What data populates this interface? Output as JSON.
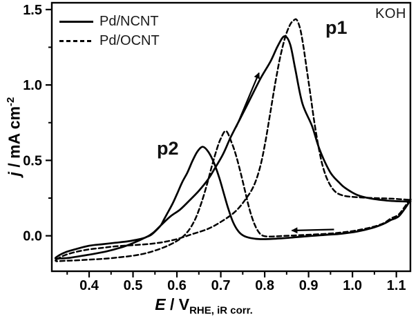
{
  "figure": {
    "background": "#ffffff",
    "ink": "#000000"
  },
  "legend": {
    "items": [
      {
        "label": "Pd/NCNT",
        "line_style": "solid"
      },
      {
        "label": "Pd/OCNT",
        "line_style": "dashed"
      }
    ]
  },
  "annotations": {
    "electrolyte": "KOH",
    "peak1": "p1",
    "peak2": "p2"
  },
  "axes": {
    "x": {
      "label_main": "E",
      "label_unit": " / V",
      "label_sub": "RHE, iR corr.",
      "range": [
        0.315,
        1.132
      ],
      "major_ticks": [
        {
          "value": 0.4,
          "label": "0.4"
        },
        {
          "value": 0.5,
          "label": "0.5"
        },
        {
          "value": 0.6,
          "label": "0.6"
        },
        {
          "value": 0.7,
          "label": "0.7"
        },
        {
          "value": 0.8,
          "label": "0.8"
        },
        {
          "value": 0.9,
          "label": "0.9"
        },
        {
          "value": 1.0,
          "label": "1.0"
        },
        {
          "value": 1.1,
          "label": "1.1"
        }
      ],
      "minor_ticks": [
        0.35,
        0.45,
        0.55,
        0.65,
        0.75,
        0.85,
        0.95,
        1.05
      ]
    },
    "y": {
      "label_main": "j",
      "label_unit": " / mA cm",
      "label_sup": "-2",
      "range": [
        -0.235,
        1.545
      ],
      "major_ticks": [
        {
          "value": 0.0,
          "label": "0.0"
        },
        {
          "value": 0.5,
          "label": "0.5"
        },
        {
          "value": 1.0,
          "label": "1.0"
        },
        {
          "value": 1.5,
          "label": "1.5"
        }
      ],
      "minor_ticks": [
        0.25,
        0.75,
        1.25
      ]
    }
  },
  "chart_data": {
    "type": "line",
    "title": "",
    "xlabel": "E / V_RHE, iR corr.",
    "ylabel": "j / mA cm^-2",
    "xlim": [
      0.315,
      1.132
    ],
    "ylim": [
      -0.235,
      1.545
    ],
    "grid": false,
    "legend_position": "upper-left",
    "series": [
      {
        "name": "Pd/NCNT",
        "style": "solid",
        "forward": [
          [
            0.325,
            -0.142
          ],
          [
            0.345,
            -0.11
          ],
          [
            0.37,
            -0.088
          ],
          [
            0.4,
            -0.066
          ],
          [
            0.43,
            -0.056
          ],
          [
            0.46,
            -0.046
          ],
          [
            0.49,
            -0.036
          ],
          [
            0.515,
            -0.022
          ],
          [
            0.53,
            -0.009
          ],
          [
            0.545,
            0.018
          ],
          [
            0.563,
            0.068
          ],
          [
            0.585,
            0.128
          ],
          [
            0.607,
            0.173
          ],
          [
            0.628,
            0.232
          ],
          [
            0.649,
            0.295
          ],
          [
            0.67,
            0.37
          ],
          [
            0.685,
            0.44
          ],
          [
            0.705,
            0.54
          ],
          [
            0.722,
            0.65
          ],
          [
            0.743,
            0.77
          ],
          [
            0.764,
            0.89
          ],
          [
            0.79,
            1.04
          ],
          [
            0.814,
            1.16
          ],
          [
            0.83,
            1.26
          ],
          [
            0.845,
            1.323
          ],
          [
            0.858,
            1.27
          ],
          [
            0.87,
            1.1
          ],
          [
            0.886,
            0.877
          ],
          [
            0.908,
            0.727
          ],
          [
            0.925,
            0.573
          ],
          [
            0.949,
            0.423
          ],
          [
            0.97,
            0.352
          ],
          [
            0.983,
            0.318
          ],
          [
            1.01,
            0.272
          ],
          [
            1.04,
            0.248
          ],
          [
            1.08,
            0.233
          ],
          [
            1.105,
            0.229
          ],
          [
            1.13,
            0.227
          ]
        ],
        "reverse": [
          [
            1.13,
            0.227
          ],
          [
            1.12,
            0.183
          ],
          [
            1.105,
            0.128
          ],
          [
            1.088,
            0.105
          ],
          [
            1.07,
            0.078
          ],
          [
            1.045,
            0.052
          ],
          [
            1.01,
            0.028
          ],
          [
            0.975,
            0.014
          ],
          [
            0.94,
            0.006
          ],
          [
            0.9,
            -0.002
          ],
          [
            0.86,
            -0.012
          ],
          [
            0.82,
            -0.02
          ],
          [
            0.79,
            -0.022
          ],
          [
            0.768,
            -0.015
          ],
          [
            0.752,
            0.0
          ],
          [
            0.74,
            0.03
          ],
          [
            0.728,
            0.09
          ],
          [
            0.717,
            0.18
          ],
          [
            0.707,
            0.28
          ],
          [
            0.697,
            0.38
          ],
          [
            0.685,
            0.48
          ],
          [
            0.672,
            0.555
          ],
          [
            0.659,
            0.59
          ],
          [
            0.647,
            0.56
          ],
          [
            0.636,
            0.5
          ],
          [
            0.624,
            0.42
          ],
          [
            0.612,
            0.355
          ],
          [
            0.6,
            0.275
          ],
          [
            0.591,
            0.218
          ],
          [
            0.58,
            0.158
          ],
          [
            0.57,
            0.105
          ],
          [
            0.563,
            0.068
          ],
          [
            0.55,
            0.028
          ],
          [
            0.54,
            0.004
          ],
          [
            0.529,
            -0.01
          ],
          [
            0.51,
            -0.036
          ],
          [
            0.49,
            -0.06
          ],
          [
            0.47,
            -0.08
          ],
          [
            0.44,
            -0.103
          ],
          [
            0.41,
            -0.12
          ],
          [
            0.38,
            -0.135
          ],
          [
            0.355,
            -0.146
          ],
          [
            0.335,
            -0.15
          ],
          [
            0.325,
            -0.152
          ]
        ]
      },
      {
        "name": "Pd/OCNT",
        "style": "dashed",
        "forward": [
          [
            0.325,
            -0.158
          ],
          [
            0.345,
            -0.128
          ],
          [
            0.37,
            -0.107
          ],
          [
            0.4,
            -0.09
          ],
          [
            0.43,
            -0.08
          ],
          [
            0.46,
            -0.07
          ],
          [
            0.5,
            -0.062
          ],
          [
            0.53,
            -0.056
          ],
          [
            0.555,
            -0.048
          ],
          [
            0.576,
            -0.038
          ],
          [
            0.6,
            -0.022
          ],
          [
            0.615,
            -0.008
          ],
          [
            0.638,
            0.014
          ],
          [
            0.67,
            0.045
          ],
          [
            0.7,
            0.092
          ],
          [
            0.732,
            0.158
          ],
          [
            0.756,
            0.24
          ],
          [
            0.775,
            0.33
          ],
          [
            0.79,
            0.46
          ],
          [
            0.802,
            0.63
          ],
          [
            0.813,
            0.82
          ],
          [
            0.824,
            1.01
          ],
          [
            0.835,
            1.18
          ],
          [
            0.847,
            1.32
          ],
          [
            0.858,
            1.4
          ],
          [
            0.866,
            1.428
          ],
          [
            0.873,
            1.432
          ],
          [
            0.881,
            1.37
          ],
          [
            0.888,
            1.26
          ],
          [
            0.896,
            1.1
          ],
          [
            0.905,
            0.92
          ],
          [
            0.913,
            0.755
          ],
          [
            0.922,
            0.6
          ],
          [
            0.932,
            0.465
          ],
          [
            0.944,
            0.365
          ],
          [
            0.96,
            0.295
          ],
          [
            0.98,
            0.266
          ],
          [
            1.01,
            0.256
          ],
          [
            1.05,
            0.25
          ],
          [
            1.09,
            0.246
          ],
          [
            1.13,
            0.238
          ]
        ],
        "reverse": [
          [
            1.13,
            0.238
          ],
          [
            1.12,
            0.196
          ],
          [
            1.105,
            0.14
          ],
          [
            1.088,
            0.115
          ],
          [
            1.07,
            0.082
          ],
          [
            1.045,
            0.058
          ],
          [
            1.01,
            0.036
          ],
          [
            0.975,
            0.022
          ],
          [
            0.94,
            0.013
          ],
          [
            0.9,
            0.007
          ],
          [
            0.865,
            0.002
          ],
          [
            0.835,
            -0.002
          ],
          [
            0.81,
            -0.005
          ],
          [
            0.795,
            0.002
          ],
          [
            0.785,
            0.03
          ],
          [
            0.775,
            0.09
          ],
          [
            0.765,
            0.18
          ],
          [
            0.755,
            0.3
          ],
          [
            0.745,
            0.42
          ],
          [
            0.735,
            0.53
          ],
          [
            0.725,
            0.615
          ],
          [
            0.712,
            0.695
          ],
          [
            0.7,
            0.645
          ],
          [
            0.69,
            0.565
          ],
          [
            0.679,
            0.455
          ],
          [
            0.668,
            0.335
          ],
          [
            0.656,
            0.22
          ],
          [
            0.644,
            0.125
          ],
          [
            0.632,
            0.058
          ],
          [
            0.62,
            0.012
          ],
          [
            0.605,
            -0.025
          ],
          [
            0.585,
            -0.058
          ],
          [
            0.56,
            -0.088
          ],
          [
            0.53,
            -0.115
          ],
          [
            0.5,
            -0.132
          ],
          [
            0.465,
            -0.144
          ],
          [
            0.43,
            -0.153
          ],
          [
            0.4,
            -0.158
          ],
          [
            0.37,
            -0.163
          ],
          [
            0.345,
            -0.166
          ],
          [
            0.33,
            -0.168
          ],
          [
            0.325,
            -0.168
          ]
        ]
      }
    ],
    "peaks": [
      {
        "label": "p1",
        "series": "Pd/NCNT",
        "x": 0.845,
        "y": 1.32
      },
      {
        "label": "p1",
        "series": "Pd/OCNT",
        "x": 0.872,
        "y": 1.43
      },
      {
        "label": "p2",
        "series": "Pd/NCNT",
        "x": 0.659,
        "y": 0.59
      },
      {
        "label": "p2",
        "series": "Pd/OCNT",
        "x": 0.712,
        "y": 0.7
      }
    ],
    "arrows": [
      {
        "name": "forward-scan-arrow",
        "from": [
          0.735,
          0.72
        ],
        "to": [
          0.787,
          1.08
        ]
      },
      {
        "name": "reverse-scan-arrow",
        "from": [
          0.958,
          0.042
        ],
        "to": [
          0.862,
          0.035
        ]
      }
    ]
  }
}
